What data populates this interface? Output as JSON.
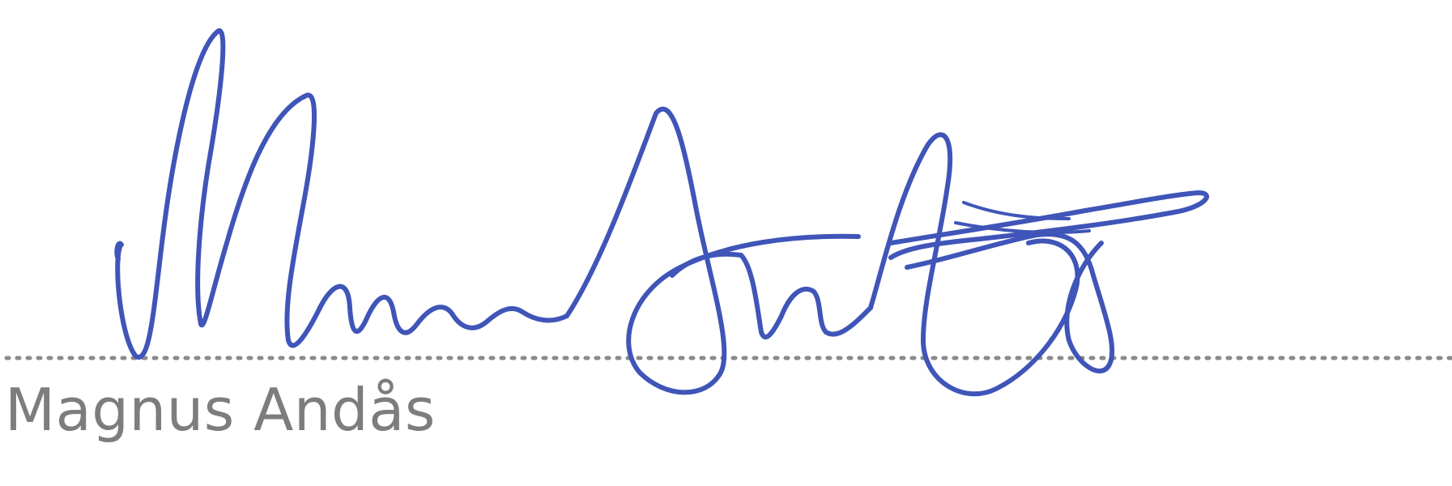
{
  "signature": {
    "signer_name": "Magnus Andås",
    "ink_color": "#3f55b8",
    "dotted_line_color": "#8a8a8a",
    "name_color": "#7d7d7d"
  }
}
